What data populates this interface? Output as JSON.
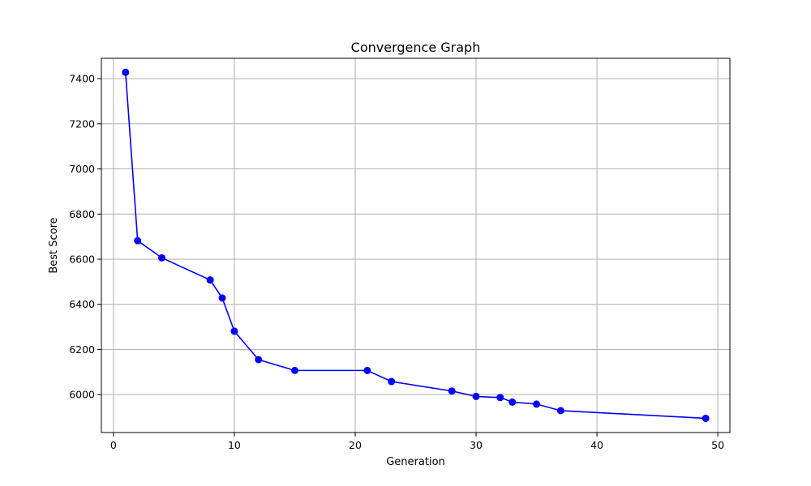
{
  "chart_data": {
    "type": "line",
    "title": "Convergence Graph",
    "xlabel": "Generation",
    "ylabel": "Best Score",
    "xlim": [
      -1,
      51
    ],
    "ylim": [
      5832,
      7490
    ],
    "xticks": [
      0,
      10,
      20,
      30,
      40,
      50
    ],
    "yticks": [
      6000,
      6200,
      6400,
      6600,
      6800,
      7000,
      7200,
      7400
    ],
    "grid": true,
    "color": "#0000ff",
    "marker": "circle",
    "series": [
      {
        "x": [
          1,
          2,
          4,
          8,
          9,
          10,
          12,
          15,
          21,
          23,
          28,
          30,
          32,
          33,
          35,
          37,
          49
        ],
        "y": [
          7428,
          6682,
          6606,
          6508,
          6428,
          6281,
          6155,
          6107,
          6107,
          6058,
          6016,
          5992,
          5987,
          5967,
          5958,
          5929,
          5895
        ]
      }
    ]
  }
}
